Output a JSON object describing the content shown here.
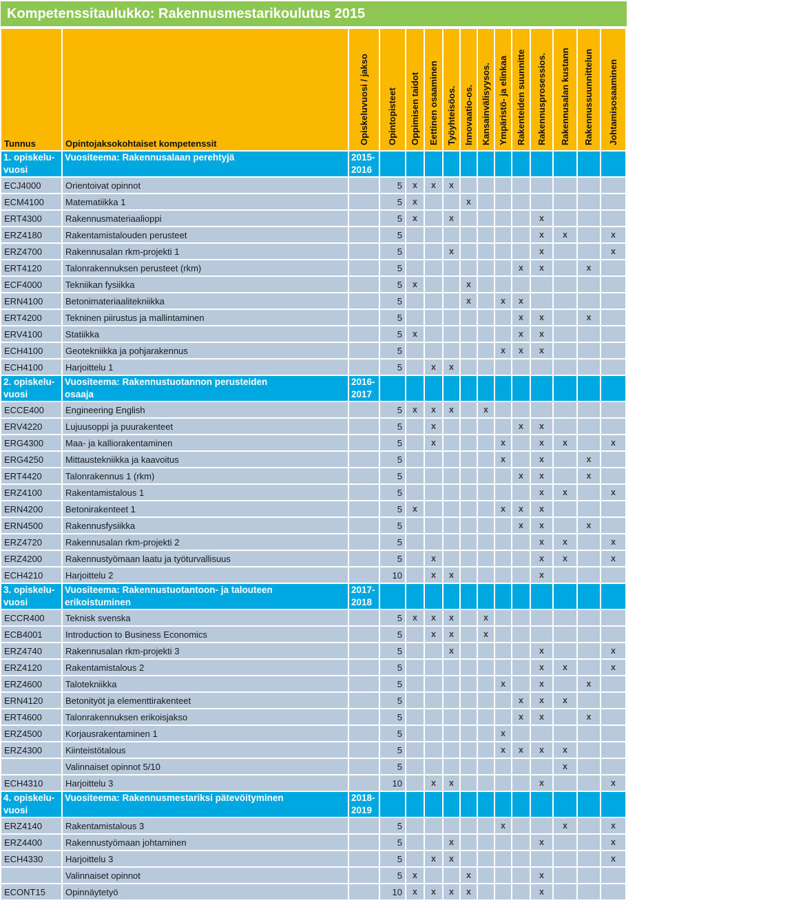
{
  "title": "Kompetenssitaulukko: Rakennusmestarikoulutus 2015",
  "colors": {
    "title_bar": "#8EC654",
    "header": "#FBB800",
    "section_row": "#00A8E2",
    "data_row": "#B9C9DC",
    "grid": "#FFFFFF",
    "title_text": "#FFFFFF",
    "body_text": "#1A1A1A",
    "mark": "#3D3D3D"
  },
  "table": {
    "tunnus_header": "Tunnus",
    "competences_header": "Opintojaksokohtaiset kompetenssit",
    "rotated_headers": [
      "Opiskeluvuosi / jakso",
      "Opintopisteet",
      "Oppimisen taidot",
      "Eettinen osaaminen",
      "Työyhteisöos.",
      "Innovaatio-os.",
      "Kansainvälisyysos.",
      "Ympäristö- ja elinkaa",
      "Rakenteiden suunnitte",
      "Rakennusprosessios.",
      "Rakennusalan kustann",
      "Rakennussuunnittelun",
      "Johtamisosaaminen"
    ],
    "mark_glyph": "x",
    "sections": [
      {
        "label_lines": [
          "1. opiskelu-",
          "vuosi"
        ],
        "theme_lines": [
          "Vuositeema: Rakennusalaan perehtyjä"
        ],
        "years_lines": [
          "2015-",
          "2016"
        ],
        "rows": [
          {
            "code": "ECJ4000",
            "name": "Orientoivat opinnot",
            "credits": "5",
            "marks": [
              1,
              2,
              3
            ]
          },
          {
            "code": "ECM4100",
            "name": "Matematiikka 1",
            "credits": "5",
            "marks": [
              1,
              4
            ]
          },
          {
            "code": "ERT4300",
            "name": "Rakennusmateriaalioppi",
            "credits": "5",
            "marks": [
              1,
              3,
              8
            ]
          },
          {
            "code": "ERZ4180",
            "name": "Rakentamistalouden perusteet",
            "credits": "5",
            "marks": [
              8,
              9,
              11
            ]
          },
          {
            "code": "ERZ4700",
            "name": "Rakennusalan rkm-projekti 1",
            "credits": "5",
            "marks": [
              3,
              8,
              11
            ]
          },
          {
            "code": "ERT4120",
            "name": "Talonrakennuksen perusteet (rkm)",
            "credits": "5",
            "marks": [
              7,
              8,
              10
            ]
          },
          {
            "code": "ECF4000",
            "name": "Tekniikan fysiikka",
            "credits": "5",
            "marks": [
              1,
              4
            ]
          },
          {
            "code": "ERN4100",
            "name": "Betonimateriaalitekniikka",
            "credits": "5",
            "marks": [
              4,
              6,
              7
            ]
          },
          {
            "code": "ERT4200",
            "name": "Tekninen piirustus ja mallintaminen",
            "credits": "5",
            "marks": [
              7,
              8,
              10
            ]
          },
          {
            "code": "ERV4100",
            "name": "Statiikka",
            "credits": "5",
            "marks": [
              1,
              7,
              8
            ]
          },
          {
            "code": "ECH4100",
            "name": "Geotekniikka ja pohjarakennus",
            "credits": "5",
            "marks": [
              6,
              7,
              8
            ]
          },
          {
            "code": "ECH4100",
            "name": "Harjoittelu 1",
            "credits": "5",
            "marks": [
              2,
              3
            ]
          }
        ]
      },
      {
        "label_lines": [
          "2. opiskelu-",
          "vuosi"
        ],
        "theme_lines": [
          "Vuositeema: Rakennustuotannon perusteiden",
          "osaaja"
        ],
        "years_lines": [
          "2016-",
          "2017"
        ],
        "rows": [
          {
            "code": "ECCE400",
            "name": "Engineering English",
            "credits": "5",
            "marks": [
              1,
              2,
              3,
              5
            ]
          },
          {
            "code": "ERV4220",
            "name": "Lujuusoppi ja puurakenteet",
            "credits": "5",
            "marks": [
              2,
              7,
              8
            ]
          },
          {
            "code": "ERG4300",
            "name": "Maa- ja kalliorakentaminen",
            "credits": "5",
            "marks": [
              2,
              6,
              8,
              9,
              11
            ]
          },
          {
            "code": "ERG4250",
            "name": "Mittaustekniikka ja kaavoitus",
            "credits": "5",
            "marks": [
              6,
              8,
              10
            ]
          },
          {
            "code": "ERT4420",
            "name": "Talonrakennus 1 (rkm)",
            "credits": "5",
            "marks": [
              7,
              8,
              10
            ]
          },
          {
            "code": "ERZ4100",
            "name": "Rakentamistalous 1",
            "credits": "5",
            "marks": [
              8,
              9,
              11
            ]
          },
          {
            "code": "ERN4200",
            "name": "Betonirakenteet 1",
            "credits": "5",
            "marks": [
              1,
              6,
              7,
              8
            ]
          },
          {
            "code": "ERN4500",
            "name": "Rakennusfysiikka",
            "credits": "5",
            "marks": [
              7,
              8,
              10
            ]
          },
          {
            "code": "ERZ4720",
            "name": "Rakennusalan rkm-projekti 2",
            "credits": "5",
            "marks": [
              8,
              9,
              11
            ]
          },
          {
            "code": "ERZ4200",
            "name": "Rakennustyömaan laatu ja työturvallisuus",
            "credits": "5",
            "marks": [
              2,
              8,
              9,
              11
            ]
          },
          {
            "code": "ECH4210",
            "name": "Harjoittelu 2",
            "credits": "10",
            "marks": [
              2,
              3,
              8
            ]
          }
        ]
      },
      {
        "label_lines": [
          "3. opiskelu-",
          "vuosi"
        ],
        "theme_lines": [
          "Vuositeema: Rakennustuotantoon- ja talouteen",
          "erikoistuminen"
        ],
        "years_lines": [
          "2017-",
          "2018"
        ],
        "rows": [
          {
            "code": "ECCR400",
            "name": "Teknisk svenska",
            "credits": "5",
            "marks": [
              1,
              2,
              3,
              5
            ]
          },
          {
            "code": "ECB4001",
            "name": "Introduction to Business Economics",
            "credits": "5",
            "marks": [
              2,
              3,
              5
            ]
          },
          {
            "code": "ERZ4740",
            "name": "Rakennusalan rkm-projekti 3",
            "credits": "5",
            "marks": [
              3,
              8,
              11
            ]
          },
          {
            "code": "ERZ4120",
            "name": "Rakentamistalous 2",
            "credits": "5",
            "marks": [
              8,
              9,
              11
            ]
          },
          {
            "code": "ERZ4600",
            "name": "Talotekniikka",
            "credits": "5",
            "marks": [
              6,
              8,
              10
            ]
          },
          {
            "code": "ERN4120",
            "name": "Betonityöt ja elementtirakenteet",
            "credits": "5",
            "marks": [
              7,
              8,
              9
            ]
          },
          {
            "code": "ERT4600",
            "name": "Talonrakennuksen erikoisjakso",
            "credits": "5",
            "marks": [
              7,
              8,
              10
            ]
          },
          {
            "code": "ERZ4500",
            "name": "Korjausrakentaminen 1",
            "credits": "5",
            "marks": [
              6
            ]
          },
          {
            "code": "ERZ4300",
            "name": "Kiinteistötalous",
            "credits": "5",
            "marks": [
              6,
              7,
              8,
              9
            ]
          },
          {
            "code": "",
            "name": "Valinnaiset opinnot 5/10",
            "credits": "5",
            "marks": [
              9
            ]
          },
          {
            "code": "ECH4310",
            "name": "Harjoittelu 3",
            "credits": "10",
            "marks": [
              2,
              3,
              8,
              11
            ]
          }
        ]
      },
      {
        "label_lines": [
          "4. opiskelu-",
          "vuosi"
        ],
        "theme_lines": [
          "Vuositeema: Rakennusmestariksi pätevöityminen"
        ],
        "years_lines": [
          "2018-",
          "2019"
        ],
        "rows": [
          {
            "code": "ERZ4140",
            "name": "Rakentamistalous 3",
            "credits": "5",
            "marks": [
              6,
              9,
              11
            ]
          },
          {
            "code": "ERZ4400",
            "name": "Rakennustyömaan johtaminen",
            "credits": "5",
            "marks": [
              3,
              8,
              11
            ]
          },
          {
            "code": "ECH4330",
            "name": "Harjoittelu 3",
            "credits": "5",
            "marks": [
              2,
              3,
              11
            ]
          },
          {
            "code": "",
            "name": "Valinnaiset opinnot",
            "credits": "5",
            "marks": [
              1,
              4,
              8
            ]
          },
          {
            "code": "ECONT15",
            "name": "Opinnäytetyö",
            "credits": "10",
            "marks": [
              1,
              2,
              3,
              4,
              8
            ]
          }
        ]
      }
    ]
  }
}
